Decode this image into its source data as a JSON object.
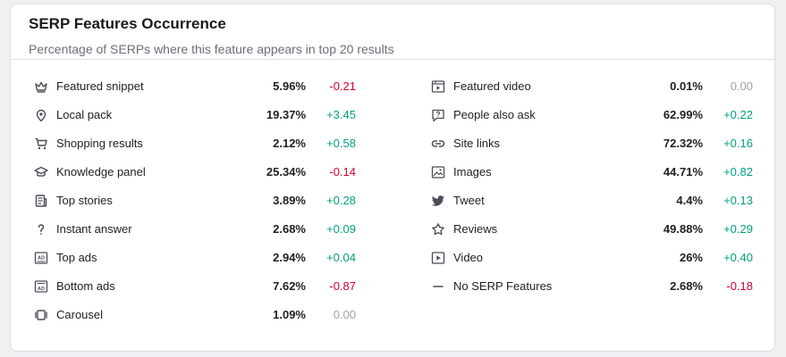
{
  "header": {
    "title": "SERP Features Occurrence",
    "subtitle": "Percentage of SERPs where this feature appears in top 20 results"
  },
  "colors": {
    "positive": "#009f81",
    "negative": "#d1002f",
    "neutral": "#a0a1aa"
  },
  "features_left": [
    {
      "icon": "crown-icon",
      "label": "Featured snippet",
      "percent": "5.96%",
      "delta": "-0.21",
      "trend": "neg"
    },
    {
      "icon": "map-pin-icon",
      "label": "Local pack",
      "percent": "19.37%",
      "delta": "+3.45",
      "trend": "pos"
    },
    {
      "icon": "shopping-cart-icon",
      "label": "Shopping results",
      "percent": "2.12%",
      "delta": "+0.58",
      "trend": "pos"
    },
    {
      "icon": "graduation-cap-icon",
      "label": "Knowledge panel",
      "percent": "25.34%",
      "delta": "-0.14",
      "trend": "neg"
    },
    {
      "icon": "newspaper-icon",
      "label": "Top stories",
      "percent": "3.89%",
      "delta": "+0.28",
      "trend": "pos"
    },
    {
      "icon": "question-mark-icon",
      "label": "Instant answer",
      "percent": "2.68%",
      "delta": "+0.09",
      "trend": "pos"
    },
    {
      "icon": "ad-top-icon",
      "label": "Top ads",
      "percent": "2.94%",
      "delta": "+0.04",
      "trend": "pos"
    },
    {
      "icon": "ad-bottom-icon",
      "label": "Bottom ads",
      "percent": "7.62%",
      "delta": "-0.87",
      "trend": "neg"
    },
    {
      "icon": "carousel-icon",
      "label": "Carousel",
      "percent": "1.09%",
      "delta": "0.00",
      "trend": "zero"
    }
  ],
  "features_right": [
    {
      "icon": "video-frame-icon",
      "label": "Featured video",
      "percent": "0.01%",
      "delta": "0.00",
      "trend": "zero"
    },
    {
      "icon": "question-bubble-icon",
      "label": "People also ask",
      "percent": "62.99%",
      "delta": "+0.22",
      "trend": "pos"
    },
    {
      "icon": "link-icon",
      "label": "Site links",
      "percent": "72.32%",
      "delta": "+0.16",
      "trend": "pos"
    },
    {
      "icon": "image-icon",
      "label": "Images",
      "percent": "44.71%",
      "delta": "+0.82",
      "trend": "pos"
    },
    {
      "icon": "bird-icon",
      "label": "Tweet",
      "percent": "4.4%",
      "delta": "+0.13",
      "trend": "pos"
    },
    {
      "icon": "star-icon",
      "label": "Reviews",
      "percent": "49.88%",
      "delta": "+0.29",
      "trend": "pos"
    },
    {
      "icon": "play-icon",
      "label": "Video",
      "percent": "26%",
      "delta": "+0.40",
      "trend": "pos"
    },
    {
      "icon": "dash-icon",
      "label": "No SERP Features",
      "percent": "2.68%",
      "delta": "-0.18",
      "trend": "neg"
    }
  ]
}
